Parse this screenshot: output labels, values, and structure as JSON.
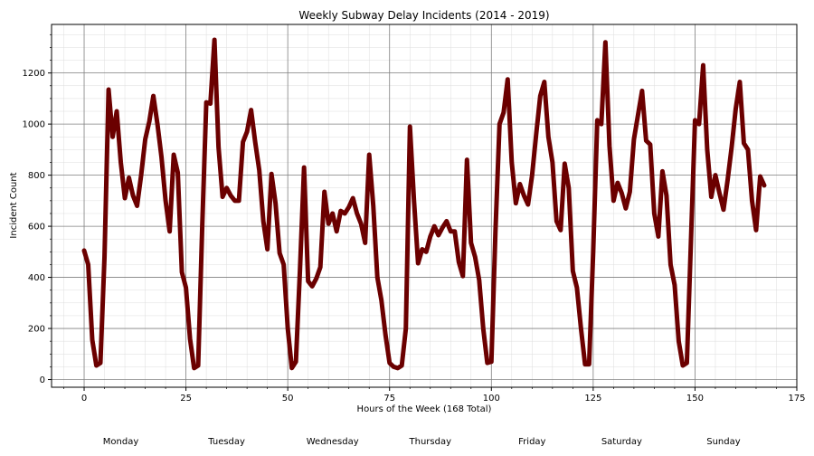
{
  "chart_data": {
    "type": "line",
    "title": "Weekly Subway Delay Incidents (2014 - 2019)",
    "xlabel": "Hours of the Week (168 Total)",
    "ylabel": "Incident Count",
    "xlim": [
      -8,
      175
    ],
    "ylim": [
      -30,
      1390
    ],
    "x_ticks": [
      0,
      25,
      50,
      75,
      100,
      125,
      150,
      175
    ],
    "y_ticks": [
      0,
      200,
      400,
      600,
      800,
      1000,
      1200
    ],
    "x_minor_step": 5,
    "y_minor_step": 50,
    "grid": true,
    "day_labels": [
      {
        "label": "Monday",
        "x": 9
      },
      {
        "label": "Tuesday",
        "x": 35
      },
      {
        "label": "Wednesday",
        "x": 61
      },
      {
        "label": "Thursday",
        "x": 85
      },
      {
        "label": "Friday",
        "x": 110
      },
      {
        "label": "Saturday",
        "x": 132
      },
      {
        "label": "Sunday",
        "x": 157
      }
    ],
    "series": [
      {
        "color": "#6b0000",
        "x": [
          0,
          1,
          2,
          3,
          4,
          5,
          6,
          7,
          8,
          9,
          10,
          11,
          12,
          13,
          14,
          15,
          16,
          17,
          18,
          19,
          20,
          21,
          22,
          23,
          24,
          25,
          26,
          27,
          28,
          29,
          30,
          31,
          32,
          33,
          34,
          35,
          36,
          37,
          38,
          39,
          40,
          41,
          42,
          43,
          44,
          45,
          46,
          47,
          48,
          49,
          50,
          51,
          52,
          53,
          54,
          55,
          56,
          57,
          58,
          59,
          60,
          61,
          62,
          63,
          64,
          65,
          66,
          67,
          68,
          69,
          70,
          71,
          72,
          73,
          74,
          75,
          76,
          77,
          78,
          79,
          80,
          81,
          82,
          83,
          84,
          85,
          86,
          87,
          88,
          89,
          90,
          91,
          92,
          93,
          94,
          95,
          96,
          97,
          98,
          99,
          100,
          101,
          102,
          103,
          104,
          105,
          106,
          107,
          108,
          109,
          110,
          111,
          112,
          113,
          114,
          115,
          116,
          117,
          118,
          119,
          120,
          121,
          122,
          123,
          124,
          125,
          126,
          127,
          128,
          129,
          130,
          131,
          132,
          133,
          134,
          135,
          136,
          137,
          138,
          139,
          140,
          141,
          142,
          143,
          144,
          145,
          146,
          147,
          148,
          149,
          150,
          151,
          152,
          153,
          154,
          155,
          156,
          157,
          158,
          159,
          160,
          161,
          162,
          163,
          164,
          165,
          166,
          167
        ],
        "values": [
          505,
          450,
          155,
          55,
          65,
          480,
          1135,
          950,
          1050,
          850,
          710,
          790,
          720,
          680,
          800,
          940,
          1010,
          1110,
          1000,
          870,
          700,
          580,
          880,
          810,
          420,
          360,
          160,
          45,
          55,
          600,
          1085,
          1080,
          1330,
          910,
          715,
          750,
          720,
          700,
          700,
          930,
          970,
          1055,
          930,
          820,
          620,
          510,
          805,
          690,
          495,
          450,
          200,
          45,
          70,
          430,
          830,
          385,
          365,
          395,
          440,
          735,
          610,
          650,
          580,
          660,
          650,
          675,
          710,
          650,
          610,
          535,
          880,
          680,
          400,
          310,
          175,
          65,
          50,
          45,
          55,
          200,
          990,
          700,
          455,
          510,
          500,
          560,
          600,
          565,
          595,
          620,
          580,
          580,
          460,
          405,
          860,
          535,
          480,
          390,
          200,
          65,
          70,
          580,
          1000,
          1045,
          1175,
          850,
          690,
          765,
          720,
          685,
          800,
          960,
          1110,
          1165,
          950,
          850,
          620,
          585,
          845,
          750,
          425,
          360,
          200,
          60,
          60,
          500,
          1015,
          1000,
          1320,
          915,
          700,
          770,
          730,
          670,
          735,
          940,
          1035,
          1130,
          935,
          920,
          650,
          560,
          815,
          720,
          450,
          370,
          150,
          55,
          65,
          540,
          1015,
          1000,
          1230,
          900,
          715,
          800,
          730,
          665,
          780,
          910,
          1060,
          1165,
          925,
          900,
          700,
          585,
          795,
          760
        ]
      }
    ]
  }
}
